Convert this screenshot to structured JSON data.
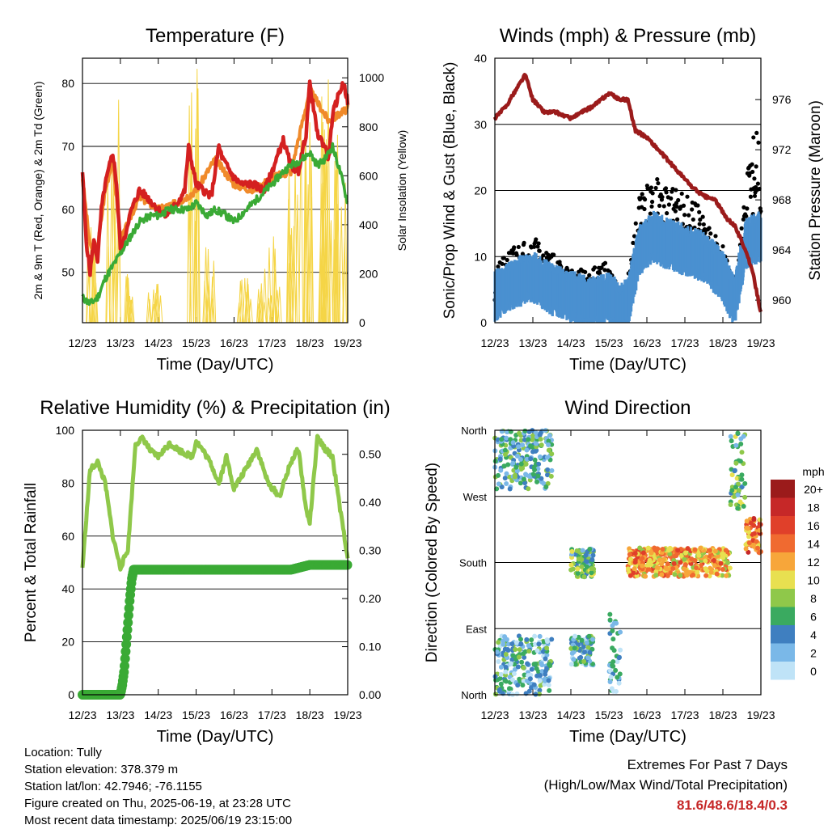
{
  "chart_data": [
    {
      "type": "line",
      "title": "Temperature (F)",
      "xlabel": "Time (Day/UTC)",
      "ylabel": "2m & 9m T (Red, Orange) & 2m Td (Green)",
      "y2label": "Solar Insolation (Yellow)",
      "x_ticks": [
        "12/23",
        "13/23",
        "14/23",
        "15/23",
        "16/23",
        "17/23",
        "18/23",
        "19/23"
      ],
      "ylim": [
        42,
        84
      ],
      "y_ticks": [
        50,
        60,
        70,
        80
      ],
      "y2lim": [
        0,
        1080
      ],
      "y2_ticks": [
        0,
        200,
        400,
        600,
        800,
        1000
      ],
      "grid": true,
      "series": [
        {
          "name": "2m T",
          "color": "#d42020",
          "x": [
            0,
            0.1,
            0.2,
            0.3,
            0.4,
            0.5,
            0.6,
            0.8,
            0.9,
            1.0,
            1.1,
            1.2,
            1.3,
            1.5,
            1.7,
            2.0,
            2.2,
            2.5,
            2.7,
            2.8,
            3.0,
            3.2,
            3.4,
            3.6,
            3.7,
            3.8,
            4.0,
            4.2,
            4.5,
            4.8,
            5.0,
            5.3,
            5.5,
            5.7,
            5.9,
            6.0,
            6.2,
            6.4,
            6.5,
            6.6,
            6.8,
            6.9,
            7.0
          ],
          "y": [
            66,
            55,
            50,
            55,
            52,
            60,
            64,
            69,
            64,
            54,
            55,
            58,
            60,
            63,
            62,
            60,
            59,
            61,
            63,
            70,
            64,
            63,
            62,
            70,
            68,
            67,
            65,
            64,
            64,
            63,
            66,
            71,
            67,
            66,
            72,
            80,
            72,
            70,
            68,
            75,
            79,
            80,
            77
          ]
        },
        {
          "name": "9m T",
          "color": "#f08a2a",
          "x": [
            0,
            0.2,
            0.4,
            0.6,
            0.8,
            1.0,
            1.5,
            2.0,
            2.5,
            3.0,
            3.5,
            4.0,
            4.5,
            5.0,
            5.5,
            6.0,
            6.5,
            7.0
          ],
          "y": [
            65,
            54,
            54,
            63,
            68,
            55,
            62,
            60,
            61,
            63,
            68,
            64,
            63,
            65,
            66,
            79,
            74,
            76
          ]
        },
        {
          "name": "2m Td",
          "color": "#3aaa35",
          "x": [
            0,
            0.2,
            0.4,
            0.6,
            0.8,
            1.0,
            1.2,
            1.5,
            1.8,
            2.0,
            2.3,
            2.5,
            2.8,
            3.0,
            3.3,
            3.5,
            3.8,
            4.0,
            4.5,
            5.0,
            5.3,
            5.5,
            5.8,
            6.0,
            6.2,
            6.4,
            6.5,
            6.6,
            6.8,
            7.0
          ],
          "y": [
            46,
            45,
            46,
            49,
            51,
            53,
            55,
            58,
            59,
            59,
            60,
            60,
            60,
            61,
            59,
            60,
            59,
            58,
            61,
            64,
            66,
            67,
            68,
            69,
            67,
            68,
            69,
            70,
            66,
            61
          ]
        },
        {
          "name": "Solar Insolation",
          "color": "#f5d547",
          "axis": "y2",
          "peaks": [
            [
              0.3,
              460
            ],
            [
              0.8,
              930
            ],
            [
              1.3,
              200
            ],
            [
              1.9,
              210
            ],
            [
              2.9,
              1060
            ],
            [
              3.4,
              310
            ],
            [
              4.3,
              200
            ],
            [
              4.8,
              250
            ],
            [
              5.1,
              370
            ],
            [
              5.6,
              700
            ],
            [
              5.9,
              870
            ],
            [
              6.3,
              930
            ],
            [
              6.5,
              1000
            ],
            [
              6.8,
              820
            ]
          ]
        }
      ]
    },
    {
      "type": "scatter",
      "title": "Winds (mph) & Pressure (mb)",
      "xlabel": "Time (Day/UTC)",
      "ylabel": "Sonic/Prop Wind & Gust (Blue, Black)",
      "y2label": "Station Pressure (Maroon)",
      "x_ticks": [
        "12/23",
        "13/23",
        "14/23",
        "15/23",
        "16/23",
        "17/23",
        "18/23",
        "19/23"
      ],
      "ylim": [
        0,
        40
      ],
      "y_ticks": [
        0,
        10,
        20,
        30,
        40
      ],
      "y2lim": [
        958.2,
        979.3
      ],
      "y2_ticks": [
        960,
        964,
        968,
        972,
        976
      ],
      "grid": true,
      "series": [
        {
          "name": "Wind",
          "color": "#4a90d0",
          "x": [
            0,
            0.5,
            1.0,
            1.5,
            2.0,
            2.5,
            3.0,
            3.3,
            3.5,
            3.8,
            4.2,
            4.5,
            5.0,
            5.5,
            6.0,
            6.3,
            6.6,
            7.0
          ],
          "y": [
            4,
            6,
            7,
            5,
            4,
            3,
            4,
            2,
            3,
            11,
            13,
            12,
            11,
            10,
            7,
            3,
            12,
            13
          ]
        },
        {
          "name": "Gust",
          "color": "#000000",
          "x": [
            0,
            0.5,
            1.0,
            1.5,
            2.0,
            2.5,
            3.0,
            3.3,
            3.5,
            3.8,
            4.2,
            4.5,
            5.0,
            5.5,
            6.0,
            6.3,
            6.6,
            6.8,
            7.0
          ],
          "y": [
            7,
            10,
            11,
            9,
            7,
            7,
            8,
            4,
            6,
            16,
            18,
            17,
            16,
            14,
            10,
            5,
            17,
            25,
            22
          ]
        },
        {
          "name": "Station Pressure",
          "color": "#9b1b1b",
          "axis": "y2",
          "x": [
            0,
            0.3,
            0.6,
            0.8,
            1.0,
            1.3,
            1.6,
            2.0,
            2.3,
            2.6,
            3.0,
            3.3,
            3.5,
            3.7,
            4.0,
            4.3,
            4.6,
            4.9,
            5.2,
            5.5,
            5.8,
            6.1,
            6.3,
            6.6,
            6.8,
            7.0
          ],
          "y": [
            974.5,
            975.5,
            977.0,
            978.0,
            976.0,
            975.0,
            975.0,
            974.5,
            975.0,
            975.5,
            976.5,
            976.0,
            976.0,
            973.5,
            973.0,
            972.0,
            971.0,
            970.0,
            969.0,
            968.3,
            968.0,
            966.5,
            966.0,
            964.0,
            962.0,
            959.0
          ]
        }
      ]
    },
    {
      "type": "line",
      "title": "Relative Humidity (%) & Precipitation (in)",
      "xlabel": "Time (Day/UTC)",
      "ylabel": "Percent & Total Rainfall",
      "x_ticks": [
        "12/23",
        "13/23",
        "14/23",
        "15/23",
        "16/23",
        "17/23",
        "18/23",
        "19/23"
      ],
      "ylim": [
        0,
        100
      ],
      "y_ticks": [
        0,
        20,
        40,
        60,
        80,
        100
      ],
      "y2lim": [
        0,
        0.55
      ],
      "y2_ticks": [
        "0.00",
        "0.10",
        "0.20",
        "0.30",
        "0.40",
        "0.50"
      ],
      "grid": true,
      "series": [
        {
          "name": "Relative Humidity",
          "color": "#8fc84a",
          "x": [
            0,
            0.2,
            0.4,
            0.6,
            0.8,
            1.0,
            1.2,
            1.4,
            1.6,
            1.8,
            2.0,
            2.3,
            2.6,
            2.9,
            3.0,
            3.2,
            3.4,
            3.6,
            3.8,
            4.0,
            4.3,
            4.6,
            4.9,
            5.2,
            5.5,
            5.7,
            5.9,
            6.0,
            6.2,
            6.4,
            6.6,
            6.8,
            7.0
          ],
          "y": [
            48,
            85,
            88,
            80,
            60,
            48,
            55,
            95,
            97,
            92,
            90,
            95,
            92,
            90,
            96,
            92,
            87,
            80,
            90,
            78,
            85,
            93,
            80,
            75,
            88,
            93,
            70,
            65,
            97,
            93,
            90,
            70,
            52
          ]
        },
        {
          "name": "Total Rainfall",
          "color": "#3aaa35",
          "axis": "y2",
          "x": [
            0,
            0.5,
            1.0,
            1.05,
            1.1,
            1.15,
            1.2,
            1.25,
            1.3,
            1.35,
            1.4,
            2.0,
            3.0,
            4.0,
            5.0,
            5.5,
            6.0,
            6.5,
            7.0
          ],
          "y": [
            0,
            0,
            0,
            0.02,
            0.05,
            0.1,
            0.15,
            0.2,
            0.24,
            0.26,
            0.26,
            0.26,
            0.26,
            0.26,
            0.26,
            0.26,
            0.27,
            0.27,
            0.27
          ]
        }
      ]
    },
    {
      "type": "scatter",
      "title": "Wind Direction",
      "xlabel": "Time (Day/UTC)",
      "ylabel": "Direction (Colored By Speed)",
      "x_ticks": [
        "12/23",
        "13/23",
        "14/23",
        "15/23",
        "16/23",
        "17/23",
        "18/23",
        "19/23"
      ],
      "y_ticks": [
        "North",
        "East",
        "South",
        "West",
        "North"
      ],
      "ylim": [
        0,
        360
      ],
      "grid": true,
      "legend": {
        "title": "mph",
        "labels": [
          "20+",
          "18",
          "16",
          "14",
          "12",
          "10",
          "8",
          "6",
          "4",
          "2",
          "0"
        ],
        "colors": [
          "#9b1b1b",
          "#c62828",
          "#e0402a",
          "#f06a30",
          "#f7a63a",
          "#e8e050",
          "#8fc84a",
          "#3aaa60",
          "#3f7fc0",
          "#7ab8e8",
          "#bfe3f7"
        ],
        "placement": "right"
      },
      "clusters": [
        {
          "x": [
            0.0,
            1.5
          ],
          "dir": [
            280,
            360
          ],
          "speed": 5
        },
        {
          "x": [
            0.0,
            1.5
          ],
          "dir": [
            0,
            80
          ],
          "speed": 4
        },
        {
          "x": [
            2.0,
            2.6
          ],
          "dir": [
            160,
            200
          ],
          "speed": 6
        },
        {
          "x": [
            2.0,
            2.6
          ],
          "dir": [
            40,
            80
          ],
          "speed": 4
        },
        {
          "x": [
            3.0,
            3.3
          ],
          "dir": [
            0,
            110
          ],
          "speed": 3
        },
        {
          "x": [
            3.5,
            6.2
          ],
          "dir": [
            160,
            200
          ],
          "speed": 12
        },
        {
          "x": [
            6.2,
            6.6
          ],
          "dir": [
            250,
            360
          ],
          "speed": 6
        },
        {
          "x": [
            6.6,
            7.0
          ],
          "dir": [
            190,
            240
          ],
          "speed": 14
        }
      ]
    }
  ],
  "info": {
    "location": "Location: Tully",
    "elevation": "Station elevation: 378.379 m",
    "latlon": "Station lat/lon: 42.7946; -76.1155",
    "created": "Figure created on Thu, 2025-06-19, at 23:28 UTC",
    "timestamp": "Most recent data timestamp: 2025/06/19 23:15:00"
  },
  "extremes": {
    "title": "Extremes For Past 7 Days",
    "subtitle": "(High/Low/Max Wind/Total Precipitation)",
    "values": "81.6/48.6/18.4/0.3"
  }
}
